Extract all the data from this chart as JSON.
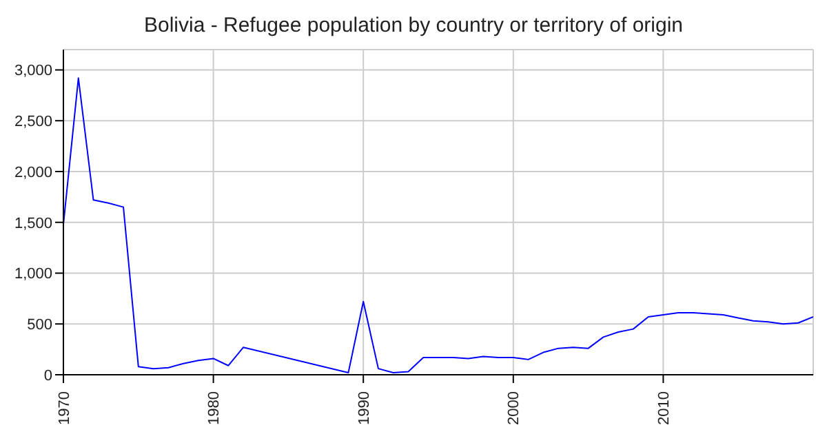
{
  "chart_data": {
    "type": "line",
    "title": "Bolivia - Refugee population by country or territory of origin",
    "x": [
      1970,
      1971,
      1972,
      1973,
      1974,
      1975,
      1976,
      1977,
      1978,
      1979,
      1980,
      1981,
      1982,
      1989,
      1990,
      1991,
      1992,
      1993,
      1994,
      1995,
      1996,
      1997,
      1998,
      1999,
      2000,
      2001,
      2002,
      2003,
      2004,
      2005,
      2006,
      2007,
      2008,
      2009,
      2010,
      2011,
      2012,
      2013,
      2014,
      2015,
      2016,
      2017,
      2018,
      2019,
      2020
    ],
    "series": [
      {
        "color": "#0000ff",
        "values": [
          1480,
          2920,
          1720,
          1690,
          1650,
          80,
          60,
          70,
          110,
          140,
          160,
          90,
          270,
          20,
          720,
          60,
          20,
          30,
          170,
          170,
          170,
          160,
          180,
          170,
          170,
          150,
          220,
          260,
          270,
          260,
          370,
          420,
          450,
          570,
          590,
          610,
          610,
          600,
          590,
          560,
          530,
          520,
          500,
          510,
          570
        ]
      }
    ],
    "xlim": [
      1970,
      2020
    ],
    "xticks": [
      1970,
      1980,
      1990,
      2000,
      2010
    ],
    "ylim": [
      0,
      3200
    ],
    "yticks": [
      0,
      500,
      {
        "value": 1000,
        "label": "1,000"
      },
      {
        "value": 1500,
        "label": "1,500"
      },
      {
        "value": 2000,
        "label": "2,000"
      },
      {
        "value": 2500,
        "label": "2,500"
      },
      {
        "value": 3000,
        "label": "3,000"
      }
    ],
    "grid": true,
    "marker": "none",
    "line_style": "solid"
  }
}
